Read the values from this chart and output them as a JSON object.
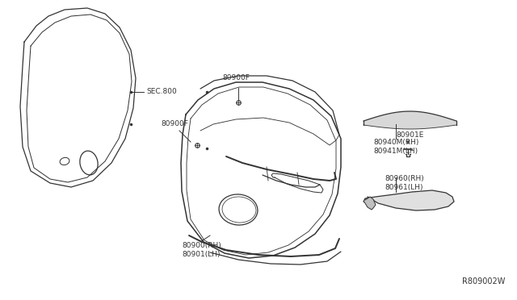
{
  "bg_color": "#ffffff",
  "line_color": "#333333",
  "text_color": "#333333",
  "part_number_ref": "R809002W",
  "labels": {
    "sec800": "SEC.800",
    "80900F_top": "80900F",
    "80900F_mid": "80900F",
    "80900_RH": "80900(RH)\n80901(LH)",
    "80960_RH": "80960(RH)\n80961(LH)",
    "80901E": "80901E",
    "80940M": "80940M(RH)\n80941M(LH)"
  },
  "figsize": [
    6.4,
    3.72
  ],
  "dpi": 100
}
